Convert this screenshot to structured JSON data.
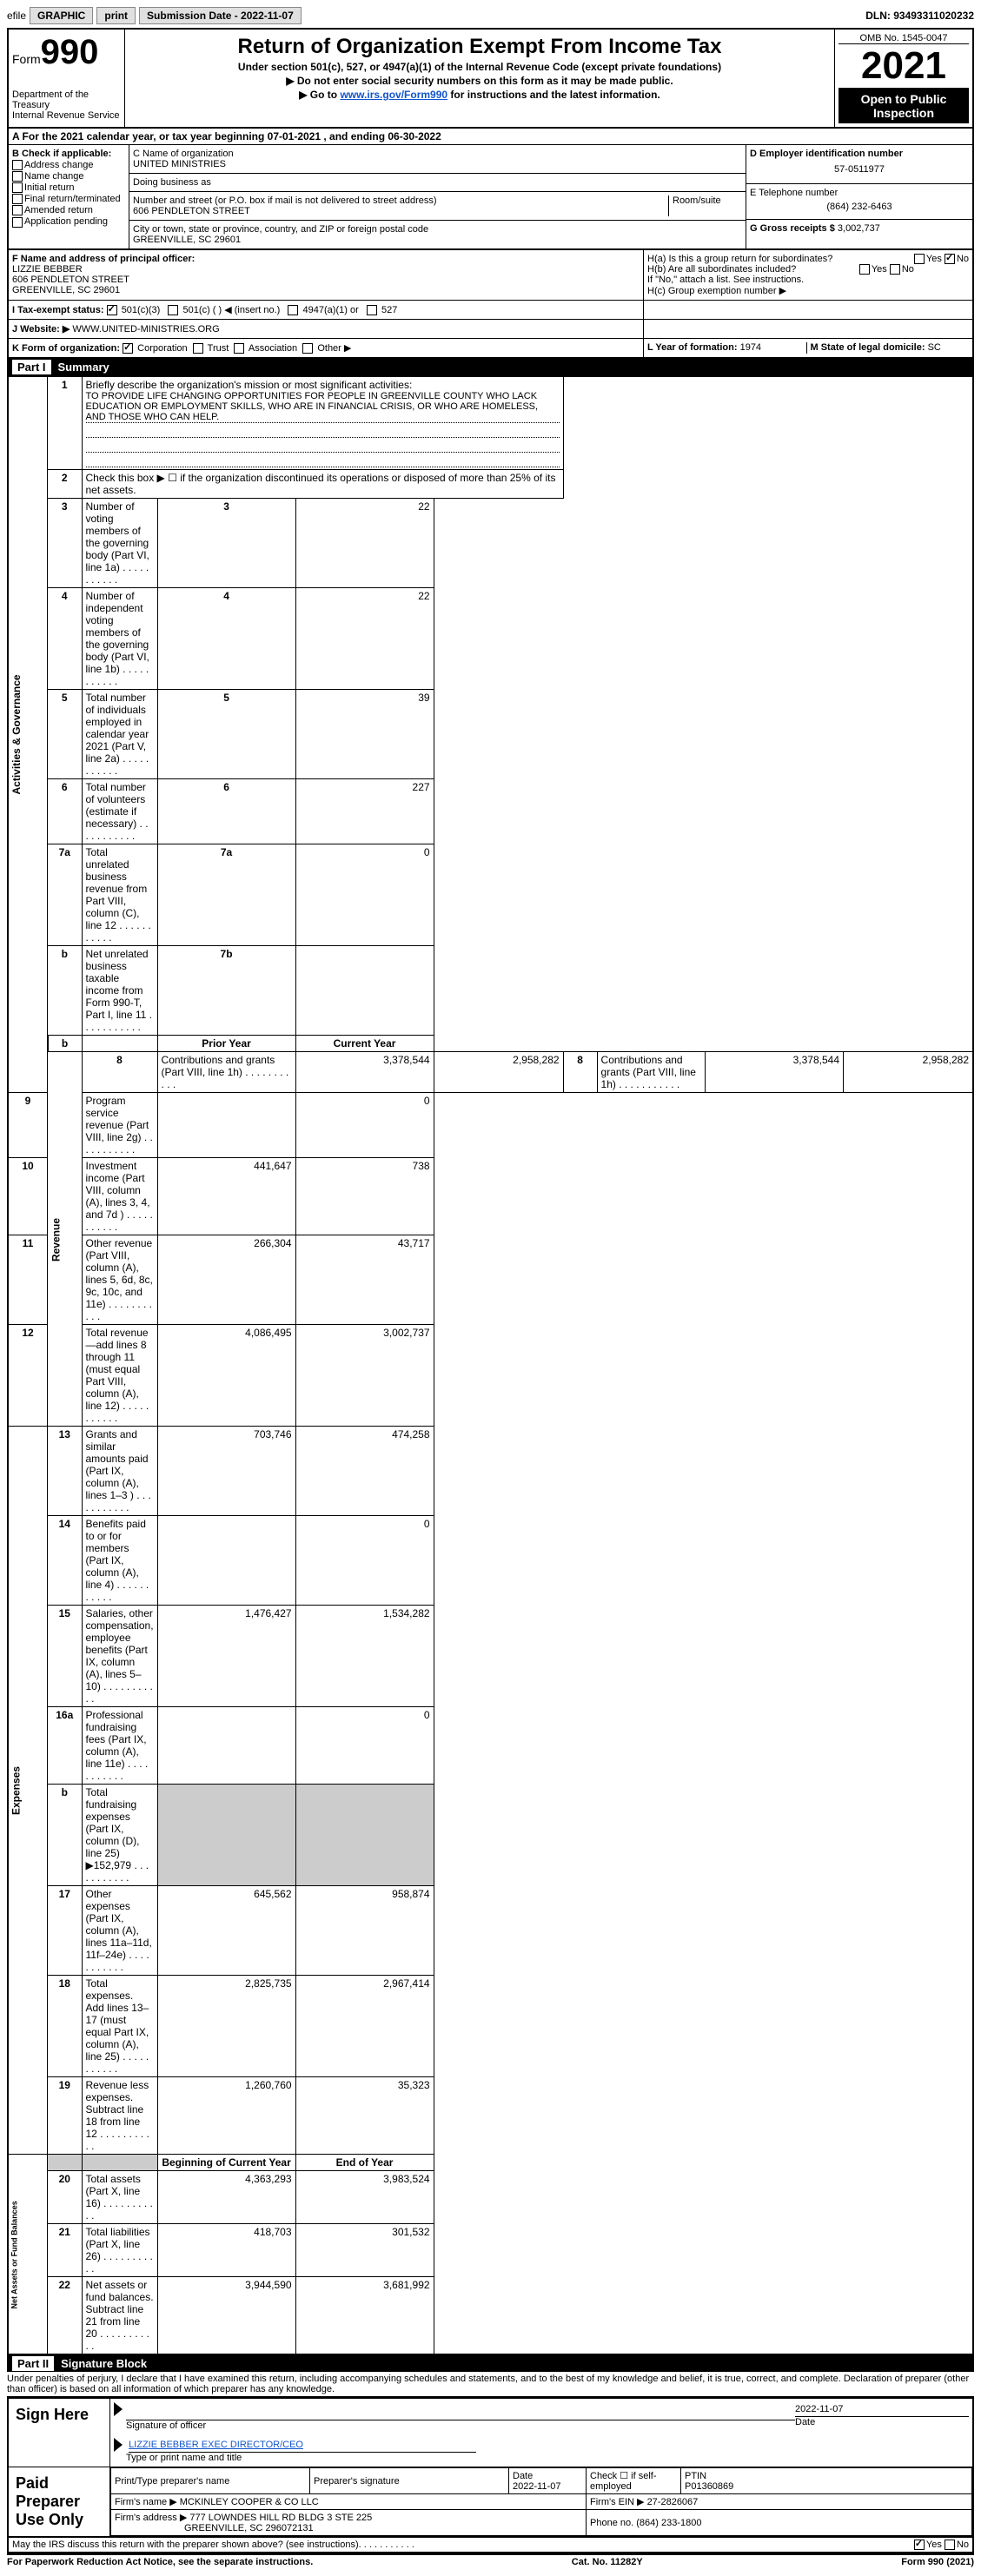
{
  "topbar": {
    "efile_prefix": "efile",
    "graphic_btn": "GRAPHIC",
    "print_btn": "print",
    "submission_label": "Submission Date - 2022-11-07",
    "dln_label": "DLN: 93493311020232"
  },
  "header": {
    "form_label": "Form",
    "form_number": "990",
    "dept": "Department of the Treasury",
    "irs": "Internal Revenue Service",
    "title": "Return of Organization Exempt From Income Tax",
    "subtitle": "Under section 501(c), 527, or 4947(a)(1) of the Internal Revenue Code (except private foundations)",
    "note1": "▶ Do not enter social security numbers on this form as it may be made public.",
    "note2_prefix": "▶ Go to ",
    "note2_link": "www.irs.gov/Form990",
    "note2_suffix": " for instructions and the latest information.",
    "omb": "OMB No. 1545-0047",
    "year": "2021",
    "inspect": "Open to Public Inspection"
  },
  "row_a": "A For the 2021 calendar year, or tax year beginning 07-01-2021    , and ending 06-30-2022",
  "col_b": {
    "header": "B Check if applicable:",
    "items": [
      "Address change",
      "Name change",
      "Initial return",
      "Final return/terminated",
      "Amended return",
      "Application pending"
    ]
  },
  "col_c": {
    "name_label": "C Name of organization",
    "name": "UNITED MINISTRIES",
    "dba_label": "Doing business as",
    "addr_label": "Number and street (or P.O. box if mail is not delivered to street address)",
    "room_label": "Room/suite",
    "addr": "606 PENDLETON STREET",
    "city_label": "City or town, state or province, country, and ZIP or foreign postal code",
    "city": "GREENVILLE, SC  29601"
  },
  "col_d": {
    "ein_label": "D Employer identification number",
    "ein": "57-0511977",
    "phone_label": "E Telephone number",
    "phone": "(864) 232-6463",
    "gross_label": "G Gross receipts $",
    "gross": "3,002,737"
  },
  "row_f": {
    "label": "F Name and address of principal officer:",
    "name": "LIZZIE BEBBER",
    "addr1": "606 PENDLETON STREET",
    "addr2": "GREENVILLE, SC  29601"
  },
  "row_h": {
    "ha": "H(a)  Is this a group return for subordinates?",
    "hb": "H(b)  Are all subordinates included?",
    "hb_note": "If \"No,\" attach a list. See instructions.",
    "hc": "H(c)  Group exemption number ▶",
    "yes": "Yes",
    "no": "No"
  },
  "row_i": {
    "label": "I  Tax-exempt status:",
    "opts": [
      "501(c)(3)",
      "501(c) (   ) ◀ (insert no.)",
      "4947(a)(1) or",
      "527"
    ]
  },
  "row_j": {
    "label": "J  Website: ▶",
    "value": "WWW.UNITED-MINISTRIES.ORG"
  },
  "row_k": {
    "label": "K Form of organization:",
    "opts": [
      "Corporation",
      "Trust",
      "Association",
      "Other ▶"
    ]
  },
  "row_l": {
    "label": "L Year of formation:",
    "value": "1974"
  },
  "row_m": {
    "label": "M State of legal domicile:",
    "value": "SC"
  },
  "part1": {
    "title": "Summary",
    "line1_label": "Briefly describe the organization's mission or most significant activities:",
    "line1_text": "TO PROVIDE LIFE CHANGING OPPORTUNITIES FOR PEOPLE IN GREENVILLE COUNTY WHO LACK EDUCATION OR EMPLOYMENT SKILLS, WHO ARE IN FINANCIAL CRISIS, OR WHO ARE HOMELESS, AND THOSE WHO CAN HELP.",
    "line2": "Check this box ▶ ☐ if the organization discontinued its operations or disposed of more than 25% of its net assets.",
    "rows_gov": [
      {
        "n": "3",
        "label": "Number of voting members of the governing body (Part VI, line 1a)",
        "box": "3",
        "val": "22"
      },
      {
        "n": "4",
        "label": "Number of independent voting members of the governing body (Part VI, line 1b)",
        "box": "4",
        "val": "22"
      },
      {
        "n": "5",
        "label": "Total number of individuals employed in calendar year 2021 (Part V, line 2a)",
        "box": "5",
        "val": "39"
      },
      {
        "n": "6",
        "label": "Total number of volunteers (estimate if necessary)",
        "box": "6",
        "val": "227"
      },
      {
        "n": "7a",
        "label": "Total unrelated business revenue from Part VIII, column (C), line 12",
        "box": "7a",
        "val": "0"
      },
      {
        "n": "b",
        "label": "Net unrelated business taxable income from Form 990-T, Part I, line 11",
        "box": "7b",
        "val": ""
      }
    ],
    "prior_header": "Prior Year",
    "current_header": "Current Year",
    "rows_rev": [
      {
        "n": "8",
        "label": "Contributions and grants (Part VIII, line 1h)",
        "prior": "3,378,544",
        "curr": "2,958,282"
      },
      {
        "n": "9",
        "label": "Program service revenue (Part VIII, line 2g)",
        "prior": "",
        "curr": "0"
      },
      {
        "n": "10",
        "label": "Investment income (Part VIII, column (A), lines 3, 4, and 7d )",
        "prior": "441,647",
        "curr": "738"
      },
      {
        "n": "11",
        "label": "Other revenue (Part VIII, column (A), lines 5, 6d, 8c, 9c, 10c, and 11e)",
        "prior": "266,304",
        "curr": "43,717"
      },
      {
        "n": "12",
        "label": "Total revenue—add lines 8 through 11 (must equal Part VIII, column (A), line 12)",
        "prior": "4,086,495",
        "curr": "3,002,737"
      }
    ],
    "rows_exp": [
      {
        "n": "13",
        "label": "Grants and similar amounts paid (Part IX, column (A), lines 1–3 )",
        "prior": "703,746",
        "curr": "474,258"
      },
      {
        "n": "14",
        "label": "Benefits paid to or for members (Part IX, column (A), line 4)",
        "prior": "",
        "curr": "0"
      },
      {
        "n": "15",
        "label": "Salaries, other compensation, employee benefits (Part IX, column (A), lines 5–10)",
        "prior": "1,476,427",
        "curr": "1,534,282"
      },
      {
        "n": "16a",
        "label": "Professional fundraising fees (Part IX, column (A), line 11e)",
        "prior": "",
        "curr": "0"
      },
      {
        "n": "b",
        "label": "Total fundraising expenses (Part IX, column (D), line 25) ▶152,979",
        "prior": "GREY",
        "curr": "GREY"
      },
      {
        "n": "17",
        "label": "Other expenses (Part IX, column (A), lines 11a–11d, 11f–24e)",
        "prior": "645,562",
        "curr": "958,874"
      },
      {
        "n": "18",
        "label": "Total expenses. Add lines 13–17 (must equal Part IX, column (A), line 25)",
        "prior": "2,825,735",
        "curr": "2,967,414"
      },
      {
        "n": "19",
        "label": "Revenue less expenses. Subtract line 18 from line 12",
        "prior": "1,260,760",
        "curr": "35,323"
      }
    ],
    "begin_header": "Beginning of Current Year",
    "end_header": "End of Year",
    "rows_net": [
      {
        "n": "20",
        "label": "Total assets (Part X, line 16)",
        "prior": "4,363,293",
        "curr": "3,983,524"
      },
      {
        "n": "21",
        "label": "Total liabilities (Part X, line 26)",
        "prior": "418,703",
        "curr": "301,532"
      },
      {
        "n": "22",
        "label": "Net assets or fund balances. Subtract line 21 from line 20",
        "prior": "3,944,590",
        "curr": "3,681,992"
      }
    ],
    "vert_labels": {
      "gov": "Activities & Governance",
      "rev": "Revenue",
      "exp": "Expenses",
      "net": "Net Assets or Fund Balances"
    }
  },
  "part2": {
    "title": "Signature Block",
    "penalty": "Under penalties of perjury, I declare that I have examined this return, including accompanying schedules and statements, and to the best of my knowledge and belief, it is true, correct, and complete. Declaration of preparer (other than officer) is based on all information of which preparer has any knowledge.",
    "sign_here": "Sign Here",
    "sig_officer": "Signature of officer",
    "sig_date": "2022-11-07",
    "date_label": "Date",
    "officer_name": "LIZZIE BEBBER  EXEC DIRECTOR/CEO",
    "type_name": "Type or print name and title",
    "paid_prep": "Paid Preparer Use Only",
    "prep_name_label": "Print/Type preparer's name",
    "prep_sig_label": "Preparer's signature",
    "prep_date": "2022-11-07",
    "check_if": "Check ☐ if self-employed",
    "ptin_label": "PTIN",
    "ptin": "P01360869",
    "firm_name_label": "Firm's name    ▶",
    "firm_name": "MCKINLEY COOPER & CO LLC",
    "firm_ein_label": "Firm's EIN ▶",
    "firm_ein": "27-2826067",
    "firm_addr_label": "Firm's address ▶",
    "firm_addr1": "777 LOWNDES HILL RD BLDG 3 STE 225",
    "firm_addr2": "GREENVILLE, SC  296072131",
    "firm_phone_label": "Phone no.",
    "firm_phone": "(864) 233-1800",
    "may_irs": "May the IRS discuss this return with the preparer shown above? (see instructions)"
  },
  "footer": {
    "left": "For Paperwork Reduction Act Notice, see the separate instructions.",
    "center": "Cat. No. 11282Y",
    "right": "Form 990 (2021)"
  }
}
